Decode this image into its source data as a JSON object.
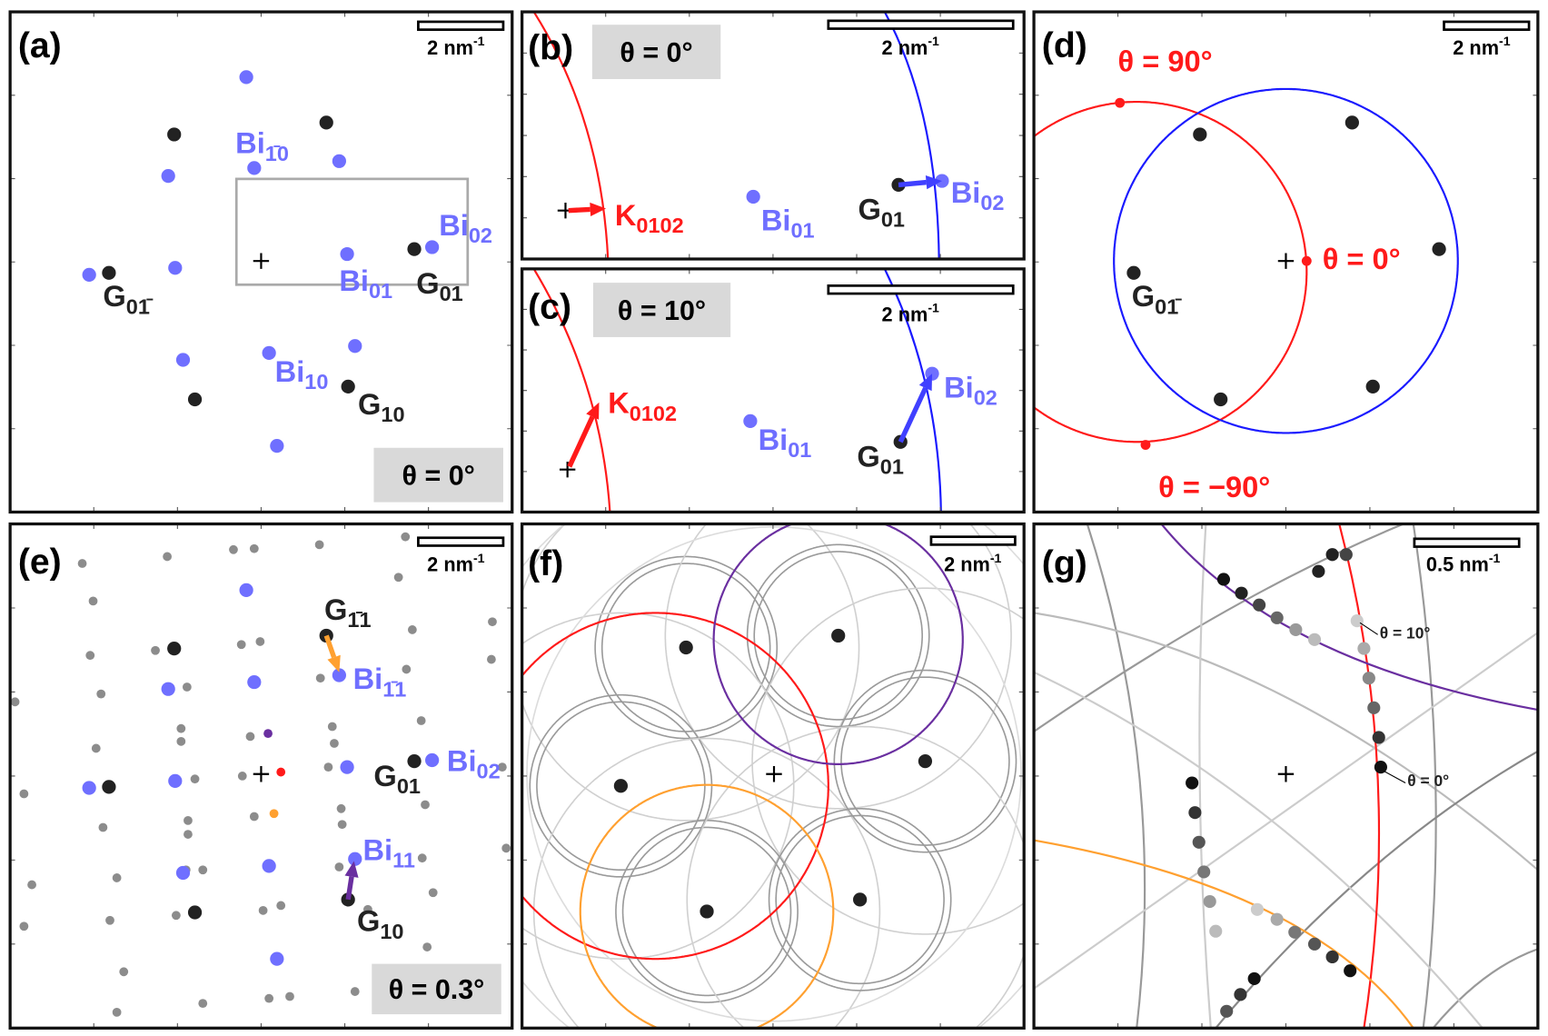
{
  "colors": {
    "red": "#ff1a1a",
    "blue": "#1a1aff",
    "bi_blue": "#6f6fff",
    "purple": "#6a2fa0",
    "orange": "#ffa030",
    "black": "#222222",
    "gray": "#8c8c8c",
    "panel_border": "#111111",
    "box_fill": "#d9d9d9"
  },
  "panels": {
    "a": {
      "letter": "(a)",
      "scale": {
        "main": "2 nm",
        "sup": "-1"
      },
      "theta": "θ = 0°",
      "labels": [
        {
          "main": "Bi",
          "sub": "1̄0",
          "color": "bi_blue"
        },
        {
          "main": "Bi",
          "sub": "02",
          "color": "bi_blue"
        },
        {
          "main": "Bi",
          "sub": "01",
          "color": "bi_blue"
        },
        {
          "main": "G",
          "sub": "01",
          "color": "black"
        },
        {
          "main": "G",
          "sub": "01̄",
          "color": "black"
        },
        {
          "main": "Bi",
          "sub": "10",
          "color": "bi_blue"
        },
        {
          "main": "G",
          "sub": "10",
          "color": "black"
        }
      ]
    },
    "b": {
      "letter": "(b)",
      "scale": {
        "main": "2 nm",
        "sup": "-1"
      },
      "theta": "θ = 0°",
      "labels": [
        {
          "main": "K",
          "sub": "0102",
          "color": "red"
        },
        {
          "main": "Bi",
          "sub": "01",
          "color": "bi_blue"
        },
        {
          "main": "G",
          "sub": "01",
          "color": "black"
        },
        {
          "main": "Bi",
          "sub": "02",
          "color": "bi_blue"
        }
      ]
    },
    "c": {
      "letter": "(c)",
      "scale": {
        "main": "2 nm",
        "sup": "-1"
      },
      "theta": "θ = 10°",
      "labels": [
        {
          "main": "K",
          "sub": "0102",
          "color": "red"
        },
        {
          "main": "Bi",
          "sub": "01",
          "color": "bi_blue"
        },
        {
          "main": "G",
          "sub": "01",
          "color": "black"
        },
        {
          "main": "Bi",
          "sub": "02",
          "color": "bi_blue"
        }
      ]
    },
    "d": {
      "letter": "(d)",
      "scale": {
        "main": "2 nm",
        "sup": "-1"
      },
      "labels": [
        {
          "main": "θ = 90°",
          "sub": "",
          "color": "red"
        },
        {
          "main": "θ = 0°",
          "sub": "",
          "color": "red"
        },
        {
          "main": "θ = −90°",
          "sub": "",
          "color": "red"
        },
        {
          "main": "G",
          "sub": "01̄",
          "color": "black"
        }
      ]
    },
    "e": {
      "letter": "(e)",
      "scale": {
        "main": "2 nm",
        "sup": "-1"
      },
      "theta": "θ = 0.3°",
      "labels": [
        {
          "main": "G",
          "sub": "1̄1",
          "color": "black"
        },
        {
          "main": "Bi",
          "sub": "1̄1",
          "color": "bi_blue"
        },
        {
          "main": "G",
          "sub": "01",
          "color": "black"
        },
        {
          "main": "Bi",
          "sub": "02",
          "color": "bi_blue"
        },
        {
          "main": "Bi",
          "sub": "11",
          "color": "bi_blue"
        },
        {
          "main": "G",
          "sub": "10",
          "color": "black"
        }
      ]
    },
    "f": {
      "letter": "(f)",
      "scale": {
        "main": "2 nm",
        "sup": "-1"
      }
    },
    "g": {
      "letter": "(g)",
      "scale": {
        "main": "0.5 nm",
        "sup": "-1"
      },
      "labels": [
        {
          "main": "θ = 10°",
          "sub": "",
          "color": "black"
        },
        {
          "main": "θ = 0°",
          "sub": "",
          "color": "black"
        }
      ]
    }
  }
}
